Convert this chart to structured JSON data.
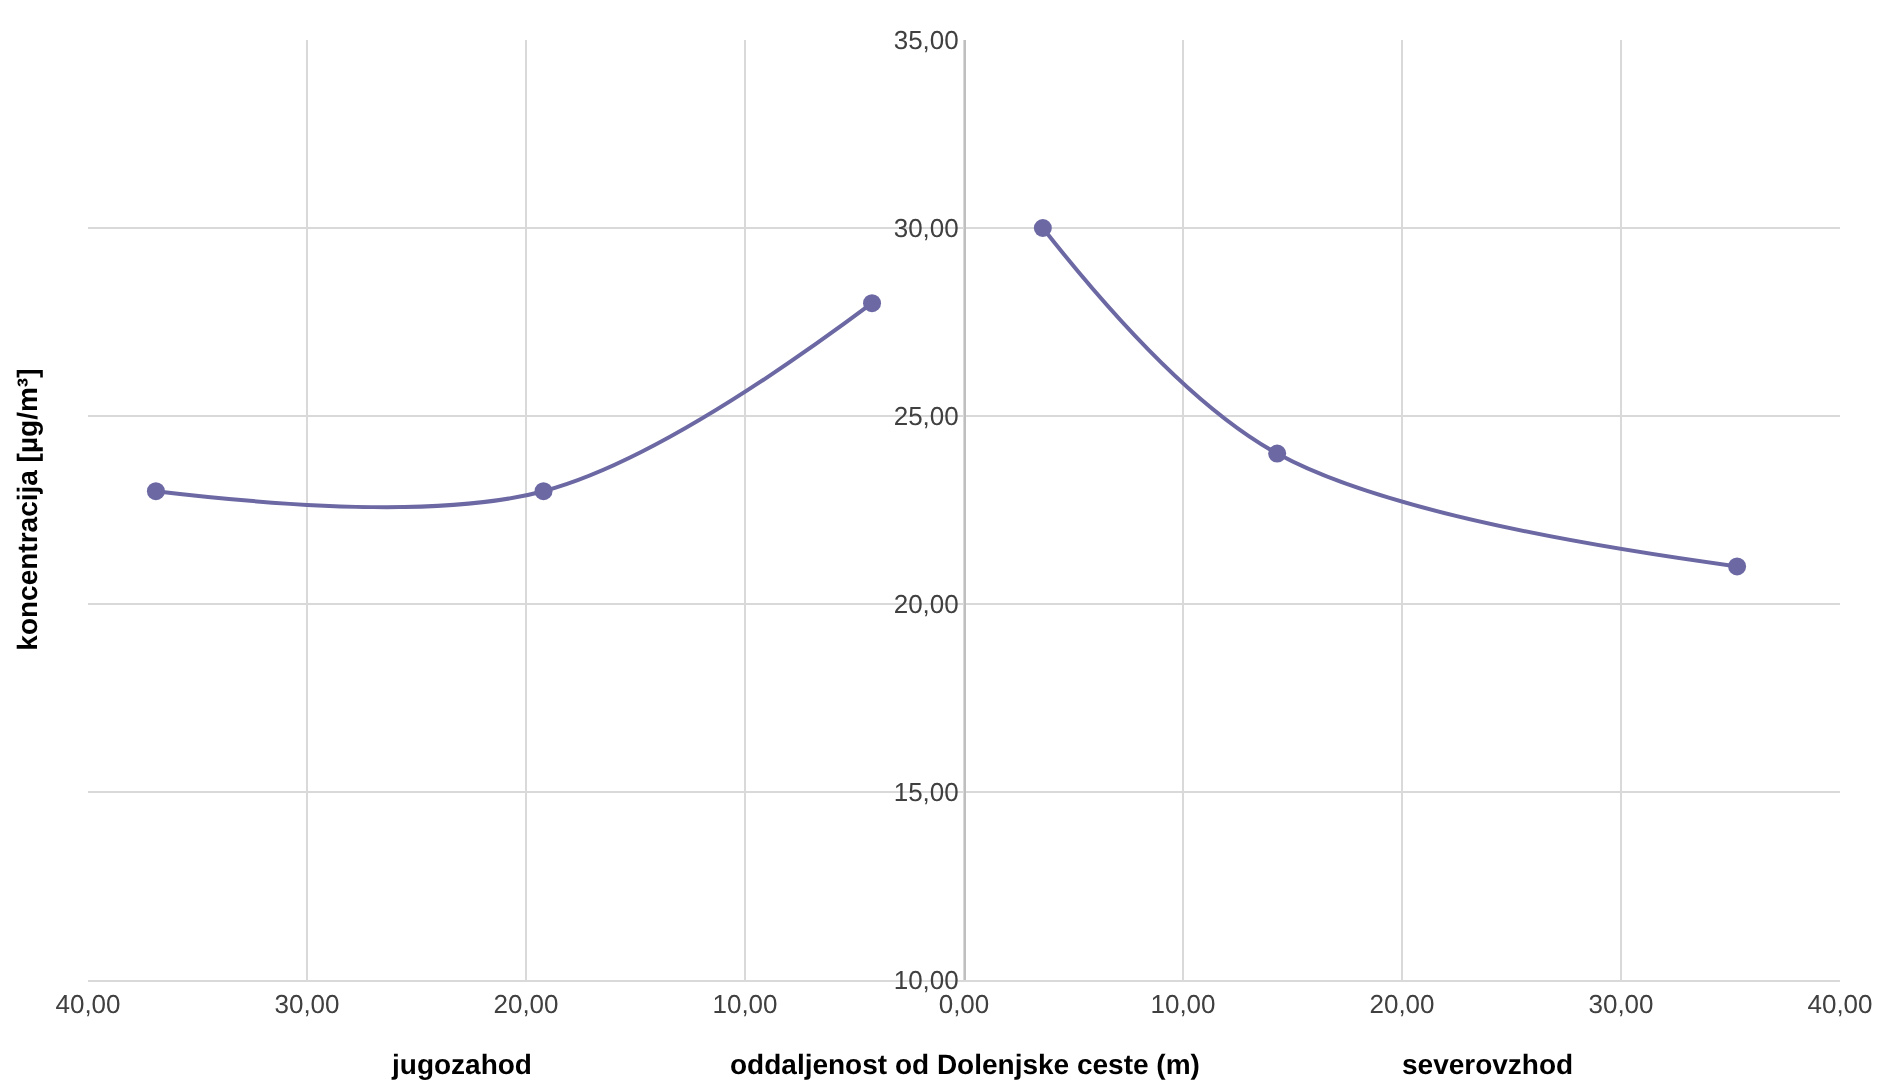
{
  "chart_data": {
    "type": "line",
    "xlabel": "oddaljenost od Dolenjske ceste (m)",
    "ylabel": "koncentracija [µg/m³]",
    "annotations": [
      "jugozahod",
      "severovzhod"
    ],
    "series": [
      {
        "color": "#6b68a3",
        "x": [
          -36.9,
          -19.2,
          -4.2
        ],
        "values": [
          23,
          23,
          28
        ]
      },
      {
        "color": "#6b68a3",
        "x": [
          3.6,
          14.3,
          35.3
        ],
        "values": [
          30,
          24,
          21
        ]
      }
    ],
    "xlim": [
      -40,
      40
    ],
    "xticks": [
      {
        "value": -40,
        "label": "40,00"
      },
      {
        "value": -30,
        "label": "30,00"
      },
      {
        "value": -20,
        "label": "20,00"
      },
      {
        "value": -10,
        "label": "10,00"
      },
      {
        "value": 0,
        "label": "0,00"
      },
      {
        "value": 10,
        "label": "10,00"
      },
      {
        "value": 20,
        "label": "20,00"
      },
      {
        "value": 30,
        "label": "30,00"
      },
      {
        "value": 40,
        "label": "40,00"
      }
    ],
    "ylim": [
      10,
      35
    ],
    "yticks": [
      {
        "value": 10,
        "label": "10,00"
      },
      {
        "value": 15,
        "label": "15,00"
      },
      {
        "value": 20,
        "label": "20,00"
      },
      {
        "value": 25,
        "label": "25,00"
      },
      {
        "value": 30,
        "label": "30,00"
      },
      {
        "value": 35,
        "label": "35,00"
      }
    ],
    "grid": true,
    "marker": "circle"
  }
}
